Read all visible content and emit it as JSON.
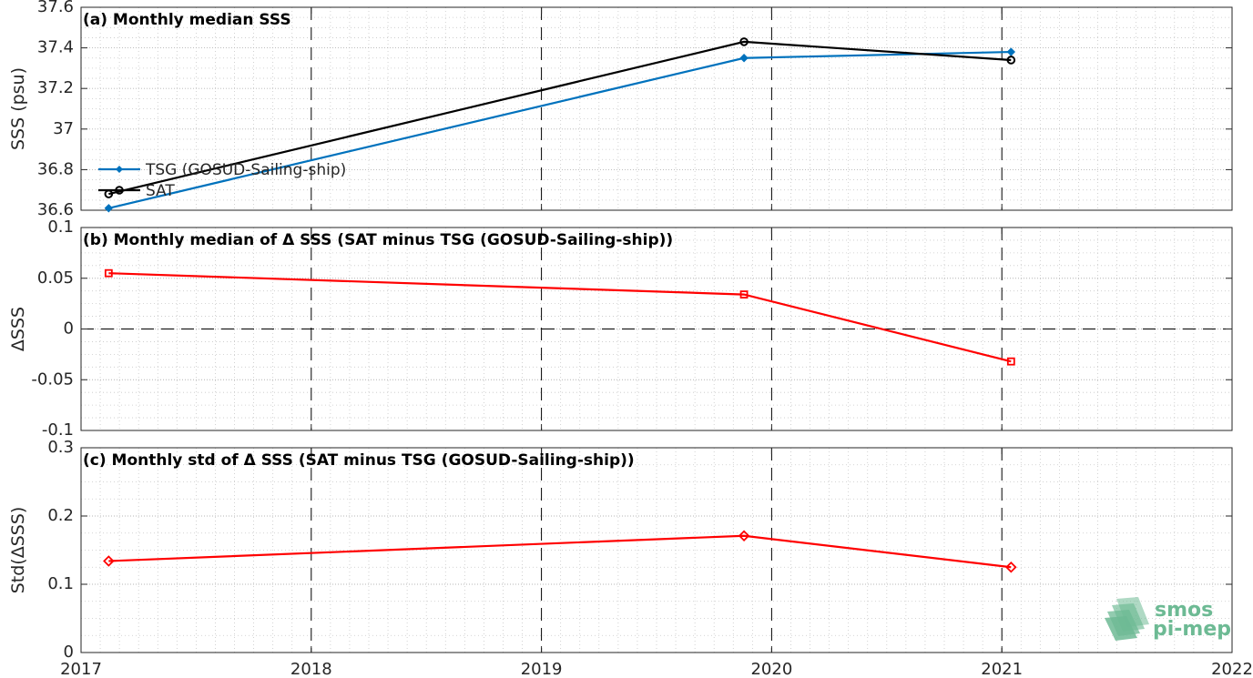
{
  "chart_data": [
    {
      "type": "line",
      "title": "(a) Monthly median SSS",
      "ylabel": "SSS (psu)",
      "xlim": [
        2017,
        2022
      ],
      "ylim": [
        36.6,
        37.6
      ],
      "yticks": [
        "36.6",
        "36.8",
        "37",
        "37.2",
        "37.4",
        "37.6"
      ],
      "grid": true,
      "legend_position": "left",
      "series": [
        {
          "name": "TSG (GOSUD-Sailing-ship)",
          "color": "#0072bd",
          "marker": "filled-diamond",
          "x": [
            2017.12,
            2019.88,
            2021.04
          ],
          "y": [
            36.61,
            37.35,
            37.38
          ]
        },
        {
          "name": "SAT",
          "color": "#000000",
          "marker": "open-circle",
          "x": [
            2017.12,
            2019.88,
            2021.04
          ],
          "y": [
            36.68,
            37.43,
            37.34
          ]
        }
      ]
    },
    {
      "type": "line",
      "title": "(b) Monthly median of Δ SSS (SAT minus TSG (GOSUD-Sailing-ship))",
      "ylabel": "ΔSSS",
      "xlim": [
        2017,
        2022
      ],
      "ylim": [
        -0.1,
        0.1
      ],
      "yticks": [
        "-0.1",
        "-0.05",
        "0",
        "0.05",
        "0.1"
      ],
      "grid": true,
      "zero_line": true,
      "series": [
        {
          "color": "#ff0000",
          "marker": "open-square",
          "x": [
            2017.12,
            2019.88,
            2021.04
          ],
          "y": [
            0.055,
            0.034,
            -0.032
          ]
        }
      ]
    },
    {
      "type": "line",
      "title": "(c) Monthly std of Δ SSS (SAT minus TSG (GOSUD-Sailing-ship))",
      "ylabel": "Std(ΔSSS)",
      "xlim": [
        2017,
        2022
      ],
      "ylim": [
        0,
        0.3
      ],
      "yticks": [
        "0",
        "0.1",
        "0.2",
        "0.3"
      ],
      "xticks": [
        "2017",
        "2018",
        "2019",
        "2020",
        "2021",
        "2022"
      ],
      "grid": true,
      "series": [
        {
          "color": "#ff0000",
          "marker": "open-diamond",
          "x": [
            2017.12,
            2019.88,
            2021.04
          ],
          "y": [
            0.134,
            0.171,
            0.125
          ]
        }
      ]
    }
  ],
  "logo": {
    "line1": "smos",
    "line2": "pi-mep",
    "color": "#6dba94"
  }
}
